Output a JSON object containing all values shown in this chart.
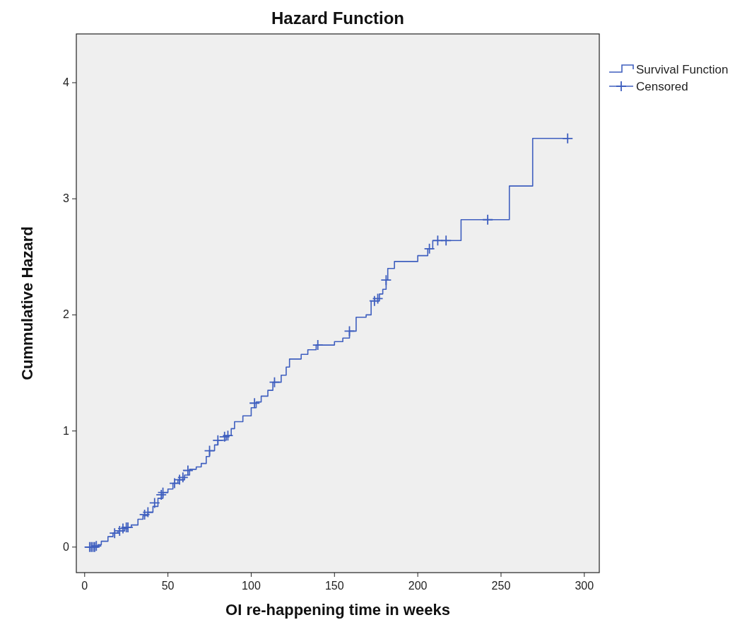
{
  "chart_data": {
    "type": "step",
    "title": "Hazard Function",
    "xlabel": "OI re-happening time in weeks",
    "ylabel": "Cummulative Hazard",
    "xlim": [
      -5,
      309
    ],
    "xticks": [
      0,
      50,
      100,
      150,
      200,
      250,
      300
    ],
    "ylim": [
      -0.22,
      4.42
    ],
    "yticks": [
      0,
      1,
      2,
      3,
      4
    ],
    "grid": false,
    "legend": "top right",
    "series": [
      {
        "name": "Survival Function",
        "color": "#3f5fbf",
        "x": [
          0,
          8,
          10,
          14,
          17,
          20,
          24,
          28,
          32,
          35,
          38,
          41,
          44,
          47,
          50,
          53,
          56,
          60,
          63,
          67,
          70,
          73,
          75,
          78,
          80,
          85,
          88,
          90,
          95,
          100,
          103,
          106,
          110,
          113,
          118,
          121,
          123,
          130,
          134,
          139,
          150,
          155,
          159,
          163,
          169,
          172,
          177,
          179,
          181,
          182,
          186,
          200,
          206,
          209,
          226,
          255,
          269,
          290
        ],
        "values": [
          0,
          0.02,
          0.05,
          0.09,
          0.12,
          0.14,
          0.17,
          0.19,
          0.24,
          0.27,
          0.3,
          0.35,
          0.42,
          0.47,
          0.5,
          0.55,
          0.58,
          0.62,
          0.67,
          0.69,
          0.72,
          0.78,
          0.83,
          0.88,
          0.92,
          0.96,
          1.02,
          1.08,
          1.13,
          1.2,
          1.25,
          1.3,
          1.35,
          1.42,
          1.48,
          1.55,
          1.62,
          1.66,
          1.7,
          1.74,
          1.77,
          1.8,
          1.86,
          1.98,
          2.0,
          2.12,
          2.18,
          2.22,
          2.3,
          2.4,
          2.46,
          2.51,
          2.57,
          2.64,
          2.82,
          3.11,
          3.52,
          3.52
        ]
      },
      {
        "name": "Censored",
        "type": "scatter",
        "color": "#3f5fbf",
        "marker": "cross",
        "x": [
          3,
          4,
          5,
          6,
          7,
          18,
          21,
          23,
          25,
          26,
          36,
          38,
          42,
          46,
          47,
          54,
          57,
          59,
          62,
          75,
          80,
          84,
          86,
          102,
          114,
          140,
          159,
          174,
          176,
          181,
          207,
          212,
          217,
          242,
          290
        ],
        "values": [
          0,
          0,
          0,
          0,
          0.01,
          0.12,
          0.14,
          0.16,
          0.17,
          0.17,
          0.28,
          0.3,
          0.38,
          0.45,
          0.47,
          0.55,
          0.58,
          0.6,
          0.66,
          0.83,
          0.92,
          0.95,
          0.96,
          1.24,
          1.42,
          1.74,
          1.86,
          2.12,
          2.14,
          2.3,
          2.57,
          2.64,
          2.64,
          2.82,
          3.52
        ]
      }
    ]
  }
}
